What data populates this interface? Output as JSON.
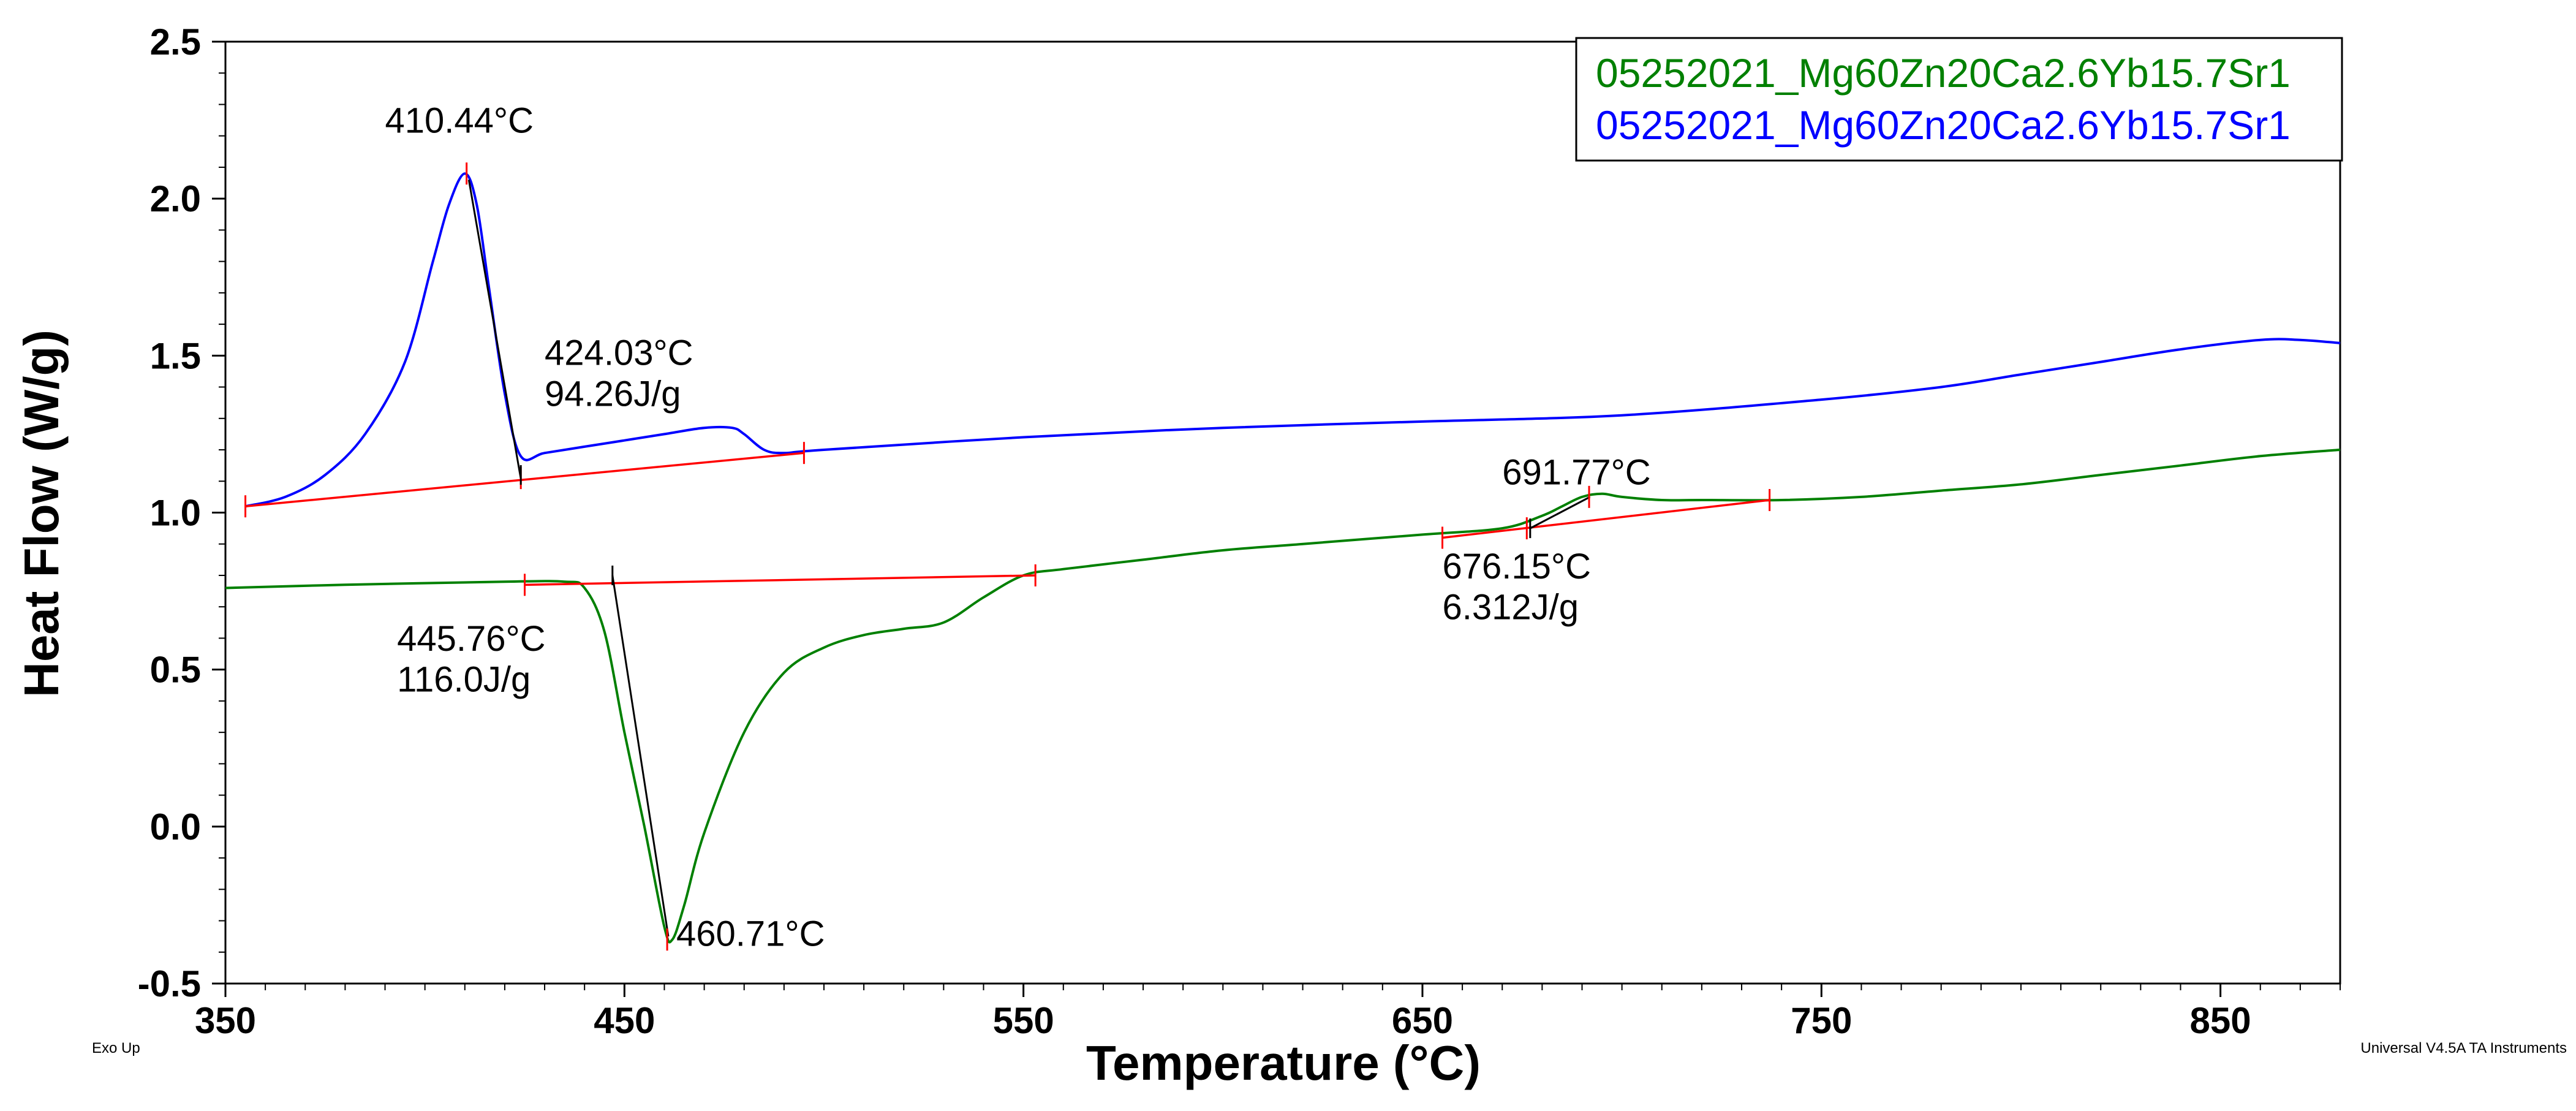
{
  "chart_data": {
    "type": "line",
    "xlabel": "Temperature (°C)",
    "ylabel": "Heat Flow (W/g)",
    "xlim": [
      350,
      880
    ],
    "ylim": [
      -0.5,
      2.5
    ],
    "x_ticks": [
      350,
      450,
      550,
      650,
      750,
      850
    ],
    "x_tick_labels": [
      "350",
      "450",
      "550",
      "650",
      "750",
      "850"
    ],
    "y_ticks": [
      -0.5,
      0.0,
      0.5,
      1.0,
      1.5,
      2.0,
      2.5
    ],
    "y_tick_labels": [
      "-0.5",
      "0.0",
      "0.5",
      "1.0",
      "1.5",
      "2.0",
      "2.5"
    ],
    "grid": false,
    "legend_position": "top-right",
    "colors": {
      "blue": "#0000ff",
      "green": "#008000",
      "red": "#ff0000",
      "black": "#000000"
    },
    "series": [
      {
        "name": "05252021_Mg60Zn20Ca2.6Yb15.7Sr1",
        "color": "#008000",
        "x": [
          350,
          380,
          420,
          435,
          440,
          445,
          450,
          455,
          460,
          462,
          465,
          470,
          480,
          490,
          500,
          510,
          520,
          530,
          540,
          550,
          560,
          580,
          600,
          620,
          650,
          670,
          680,
          685,
          690,
          695,
          700,
          710,
          720,
          740,
          760,
          780,
          800,
          820,
          840,
          860,
          880
        ],
        "y": [
          0.76,
          0.77,
          0.78,
          0.78,
          0.76,
          0.62,
          0.3,
          0.0,
          -0.32,
          -0.36,
          -0.25,
          -0.02,
          0.3,
          0.49,
          0.57,
          0.61,
          0.63,
          0.65,
          0.73,
          0.8,
          0.82,
          0.85,
          0.88,
          0.9,
          0.93,
          0.95,
          0.99,
          1.02,
          1.05,
          1.06,
          1.05,
          1.04,
          1.04,
          1.04,
          1.05,
          1.07,
          1.09,
          1.12,
          1.15,
          1.18,
          1.2
        ]
      },
      {
        "name": "05252021_Mg60Zn20Ca2.6Yb15.7Sr1",
        "color": "#0000ff",
        "x": [
          355,
          365,
          375,
          385,
          395,
          402,
          406,
          410,
          413,
          416,
          420,
          424,
          430,
          440,
          450,
          460,
          470,
          477,
          480,
          485,
          490,
          500,
          550,
          600,
          650,
          700,
          750,
          780,
          800,
          820,
          840,
          860,
          870,
          880
        ],
        "y": [
          1.02,
          1.05,
          1.12,
          1.25,
          1.48,
          1.8,
          1.98,
          2.08,
          1.98,
          1.72,
          1.38,
          1.18,
          1.19,
          1.21,
          1.23,
          1.25,
          1.27,
          1.27,
          1.25,
          1.2,
          1.19,
          1.2,
          1.24,
          1.27,
          1.29,
          1.31,
          1.36,
          1.4,
          1.44,
          1.48,
          1.52,
          1.55,
          1.55,
          1.54
        ]
      }
    ],
    "baselines": [
      {
        "x": [
          355,
          495
        ],
        "y": [
          1.02,
          1.19
        ]
      },
      {
        "x": [
          425,
          553
        ],
        "y": [
          0.77,
          0.8
        ]
      },
      {
        "x": [
          655,
          737
        ],
        "y": [
          0.92,
          1.04
        ]
      }
    ],
    "tangent_lines": [
      {
        "x": [
          411,
          424
        ],
        "y": [
          2.06,
          1.11
        ]
      },
      {
        "x": [
          447,
          461
        ],
        "y": [
          0.8,
          -0.35
        ]
      },
      {
        "x": [
          677,
          692
        ],
        "y": [
          0.95,
          1.05
        ]
      }
    ],
    "red_markers": [
      {
        "x": 355,
        "y": 1.02
      },
      {
        "x": 410.44,
        "y": 2.08
      },
      {
        "x": 424.03,
        "y": 1.11
      },
      {
        "x": 495,
        "y": 1.19
      },
      {
        "x": 425,
        "y": 0.77
      },
      {
        "x": 460.71,
        "y": -0.36
      },
      {
        "x": 553,
        "y": 0.8
      },
      {
        "x": 655,
        "y": 0.92
      },
      {
        "x": 676.15,
        "y": 0.95
      },
      {
        "x": 691.77,
        "y": 1.05
      },
      {
        "x": 737,
        "y": 1.04
      }
    ],
    "black_markers": [
      {
        "x": 424.03,
        "y": 1.12
      },
      {
        "x": 447,
        "y": 0.8
      },
      {
        "x": 677,
        "y": 0.95
      }
    ],
    "annotations": [
      {
        "text": "410.44°C",
        "x": 390,
        "y": 2.21
      },
      {
        "text": "424.03°C",
        "x": 430,
        "y": 1.47
      },
      {
        "text": "94.26J/g",
        "x": 430,
        "y": 1.34
      },
      {
        "text": "445.76°C",
        "x": 393,
        "y": 0.56
      },
      {
        "text": "116.0J/g",
        "x": 393,
        "y": 0.43
      },
      {
        "text": "460.71°C",
        "x": 463,
        "y": -0.38
      },
      {
        "text": "691.77°C",
        "x": 670,
        "y": 1.09
      },
      {
        "text": "676.15°C",
        "x": 655,
        "y": 0.79
      },
      {
        "text": "6.312J/g",
        "x": 655,
        "y": 0.66
      }
    ],
    "corner_notes": {
      "left": "Exo Up",
      "right": "Universal V4.5A TA Instruments"
    }
  }
}
